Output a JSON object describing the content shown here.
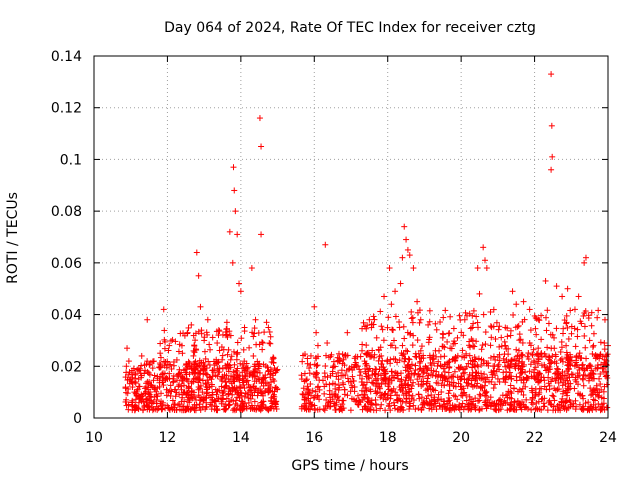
{
  "chart_data": {
    "type": "scatter",
    "title": "Day 064 of 2024, Rate Of TEC Index for receiver cztg",
    "xlabel": "GPS time / hours",
    "ylabel": "ROTI / TECUs",
    "xlim": [
      10,
      24
    ],
    "ylim": [
      0,
      0.14
    ],
    "x_ticks": [
      10,
      12,
      14,
      16,
      18,
      20,
      22,
      24
    ],
    "x_tick_labels": [
      "10",
      "12",
      "14",
      "16",
      "18",
      "20",
      "22",
      "24"
    ],
    "y_ticks": [
      0,
      0.02,
      0.04,
      0.06,
      0.08,
      0.1,
      0.12,
      0.14
    ],
    "y_tick_labels": [
      "0",
      "0.02",
      "0.04",
      "0.06",
      "0.08",
      "0.1",
      "0.12",
      "0.14"
    ],
    "grid": true,
    "marker": "+",
    "color": "#ff0000",
    "series": [
      {
        "name": "ROTI",
        "points": [
          [
            10.9,
            0.027
          ],
          [
            10.95,
            0.022
          ],
          [
            11.0,
            0.015
          ],
          [
            11.05,
            0.006
          ],
          [
            11.1,
            0.01
          ],
          [
            11.3,
            0.024
          ],
          [
            11.45,
            0.038
          ],
          [
            11.6,
            0.012
          ],
          [
            11.8,
            0.016
          ],
          [
            11.9,
            0.042
          ],
          [
            12.05,
            0.028
          ],
          [
            12.2,
            0.011
          ],
          [
            12.4,
            0.009
          ],
          [
            12.55,
            0.033
          ],
          [
            12.65,
            0.036
          ],
          [
            12.8,
            0.064
          ],
          [
            12.85,
            0.055
          ],
          [
            12.9,
            0.043
          ],
          [
            13.0,
            0.03
          ],
          [
            13.1,
            0.038
          ],
          [
            13.2,
            0.015
          ],
          [
            13.4,
            0.034
          ],
          [
            13.5,
            0.016
          ],
          [
            13.62,
            0.037
          ],
          [
            13.7,
            0.072
          ],
          [
            13.78,
            0.06
          ],
          [
            13.8,
            0.097
          ],
          [
            13.82,
            0.088
          ],
          [
            13.85,
            0.08
          ],
          [
            13.9,
            0.071
          ],
          [
            13.95,
            0.052
          ],
          [
            14.0,
            0.049
          ],
          [
            14.1,
            0.035
          ],
          [
            14.2,
            0.01
          ],
          [
            14.3,
            0.058
          ],
          [
            14.4,
            0.038
          ],
          [
            14.52,
            0.116
          ],
          [
            14.55,
            0.105
          ],
          [
            14.55,
            0.071
          ],
          [
            14.6,
            0.029
          ],
          [
            14.7,
            0.037
          ],
          [
            14.75,
            0.035
          ],
          [
            14.8,
            0.012
          ],
          [
            14.9,
            0.009
          ],
          [
            15.7,
            0.009
          ],
          [
            15.8,
            0.015
          ],
          [
            16.0,
            0.043
          ],
          [
            16.05,
            0.033
          ],
          [
            16.1,
            0.028
          ],
          [
            16.3,
            0.067
          ],
          [
            16.35,
            0.029
          ],
          [
            16.5,
            0.018
          ],
          [
            16.7,
            0.022
          ],
          [
            16.9,
            0.033
          ],
          [
            17.1,
            0.012
          ],
          [
            17.3,
            0.026
          ],
          [
            17.5,
            0.038
          ],
          [
            17.7,
            0.031
          ],
          [
            17.9,
            0.047
          ],
          [
            18.05,
            0.058
          ],
          [
            18.1,
            0.044
          ],
          [
            18.2,
            0.049
          ],
          [
            18.35,
            0.052
          ],
          [
            18.4,
            0.062
          ],
          [
            18.45,
            0.074
          ],
          [
            18.5,
            0.069
          ],
          [
            18.55,
            0.065
          ],
          [
            18.6,
            0.063
          ],
          [
            18.7,
            0.058
          ],
          [
            18.8,
            0.045
          ],
          [
            18.9,
            0.038
          ],
          [
            19.1,
            0.036
          ],
          [
            19.3,
            0.026
          ],
          [
            19.5,
            0.031
          ],
          [
            19.7,
            0.027
          ],
          [
            19.9,
            0.031
          ],
          [
            20.1,
            0.038
          ],
          [
            20.3,
            0.035
          ],
          [
            20.45,
            0.058
          ],
          [
            20.5,
            0.048
          ],
          [
            20.6,
            0.066
          ],
          [
            20.65,
            0.061
          ],
          [
            20.7,
            0.058
          ],
          [
            20.8,
            0.041
          ],
          [
            21.0,
            0.02
          ],
          [
            21.2,
            0.028
          ],
          [
            21.4,
            0.049
          ],
          [
            21.5,
            0.044
          ],
          [
            21.7,
            0.045
          ],
          [
            21.9,
            0.034
          ],
          [
            22.1,
            0.024
          ],
          [
            22.3,
            0.053
          ],
          [
            22.45,
            0.133
          ],
          [
            22.47,
            0.113
          ],
          [
            22.48,
            0.101
          ],
          [
            22.45,
            0.096
          ],
          [
            22.6,
            0.051
          ],
          [
            22.75,
            0.047
          ],
          [
            22.9,
            0.05
          ],
          [
            23.1,
            0.042
          ],
          [
            23.2,
            0.047
          ],
          [
            23.35,
            0.06
          ],
          [
            23.4,
            0.062
          ],
          [
            23.5,
            0.03
          ],
          [
            23.7,
            0.024
          ],
          [
            23.9,
            0.029
          ],
          [
            24.0,
            0.028
          ]
        ],
        "dense_bands": [
          {
            "x_range": [
              10.85,
              15.0
            ],
            "y_range": [
              0.003,
              0.022
            ],
            "count": 650
          },
          {
            "x_range": [
              11.8,
              14.9
            ],
            "y_range": [
              0.015,
              0.035
            ],
            "count": 180
          },
          {
            "x_range": [
              15.65,
              24.0
            ],
            "y_range": [
              0.003,
              0.025
            ],
            "count": 1100
          },
          {
            "x_range": [
              17.3,
              24.0
            ],
            "y_range": [
              0.015,
              0.042
            ],
            "count": 420
          }
        ]
      }
    ]
  }
}
